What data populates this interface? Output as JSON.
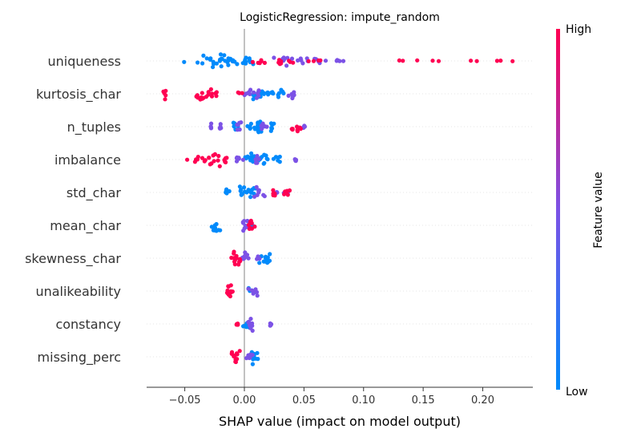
{
  "chart_data": {
    "type": "scatter",
    "title": "LogisticRegression: impute_random",
    "xlabel": "SHAP value (impact on model output)",
    "xlim": [
      -0.082,
      0.242
    ],
    "xticks": [
      -0.05,
      0.0,
      0.05,
      0.1,
      0.15,
      0.2
    ],
    "xtick_labels": [
      "−0.05",
      "0.00",
      "0.05",
      "0.10",
      "0.15",
      "0.20"
    ],
    "features": [
      "uniqueness",
      "kurtosis_char",
      "n_tuples",
      "imbalance",
      "std_char",
      "mean_char",
      "skewness_char",
      "unalikeability",
      "constancy",
      "missing_perc"
    ],
    "colorbar": {
      "label": "Feature value",
      "high_label": "High",
      "low_label": "Low",
      "low_color": "#008afb",
      "mid_color": "#7c52e6",
      "high_color": "#ff0052"
    },
    "points": {
      "uniqueness": {
        "low": [
          [
            -0.03,
            0.02,
            8
          ],
          [
            -0.02,
            0.015,
            10
          ],
          [
            -0.01,
            0.018,
            10
          ],
          [
            -0.005,
            0.015,
            8
          ],
          [
            0.005,
            0.006,
            5
          ]
        ],
        "mid": [
          [
            0.03,
            0.015,
            8
          ],
          [
            0.05,
            0.012,
            6
          ],
          [
            0.06,
            0.01,
            4
          ],
          [
            0.072,
            0.008,
            3
          ],
          [
            0.078,
            0.004,
            2
          ],
          [
            0.083,
            0.001,
            1
          ]
        ],
        "high": [
          [
            0.013,
            0.007,
            6
          ],
          [
            0.028,
            0.005,
            5
          ],
          [
            0.04,
            0.006,
            3
          ],
          [
            0.055,
            0.004,
            2
          ],
          [
            0.064,
            0.003,
            2
          ],
          [
            0.13,
            0.001,
            1
          ],
          [
            0.133,
            0.001,
            1
          ],
          [
            0.145,
            0.001,
            1
          ],
          [
            0.158,
            0.001,
            1
          ],
          [
            0.163,
            0.001,
            1
          ],
          [
            0.19,
            0.001,
            1
          ],
          [
            0.195,
            0.001,
            1
          ],
          [
            0.212,
            0.001,
            1
          ],
          [
            0.215,
            0.001,
            1
          ],
          [
            0.225,
            0.001,
            1
          ]
        ]
      },
      "kurtosis_char": {
        "high": [
          [
            -0.067,
            0.001,
            6
          ],
          [
            -0.035,
            0.006,
            12
          ],
          [
            -0.026,
            0.004,
            6
          ],
          [
            -0.005,
            0.003,
            3
          ]
        ],
        "mid": [
          [
            0.003,
            0.005,
            6
          ],
          [
            0.01,
            0.004,
            6
          ],
          [
            0.04,
            0.003,
            6
          ]
        ],
        "low": [
          [
            0.012,
            0.006,
            14
          ],
          [
            0.022,
            0.006,
            8
          ],
          [
            0.03,
            0.004,
            6
          ]
        ]
      },
      "n_tuples": {
        "mid": [
          [
            -0.028,
            0.001,
            5
          ],
          [
            -0.02,
            0.001,
            5
          ],
          [
            -0.005,
            0.002,
            6
          ],
          [
            0.015,
            0.004,
            8
          ],
          [
            0.05,
            0.002,
            4
          ]
        ],
        "low": [
          [
            -0.008,
            0.002,
            6
          ],
          [
            0.005,
            0.002,
            6
          ],
          [
            0.012,
            0.005,
            14
          ],
          [
            0.023,
            0.002,
            6
          ]
        ],
        "high": [
          [
            0.043,
            0.004,
            8
          ]
        ]
      },
      "imbalance": {
        "high": [
          [
            -0.048,
            0.001,
            1
          ],
          [
            -0.04,
            0.003,
            4
          ],
          [
            -0.032,
            0.004,
            5
          ],
          [
            -0.025,
            0.005,
            8
          ],
          [
            -0.015,
            0.004,
            5
          ]
        ],
        "mid": [
          [
            -0.005,
            0.004,
            6
          ],
          [
            0.01,
            0.003,
            6
          ],
          [
            0.043,
            0.001,
            4
          ]
        ],
        "low": [
          [
            0.005,
            0.005,
            12
          ],
          [
            0.015,
            0.006,
            12
          ],
          [
            0.028,
            0.004,
            6
          ]
        ]
      },
      "std_char": {
        "low": [
          [
            -0.015,
            0.004,
            6
          ],
          [
            -0.003,
            0.004,
            8
          ],
          [
            0.005,
            0.005,
            10
          ]
        ],
        "mid": [
          [
            0.012,
            0.006,
            8
          ],
          [
            0.027,
            0.002,
            3
          ],
          [
            0.036,
            0.002,
            3
          ]
        ],
        "high": [
          [
            0.025,
            0.002,
            5
          ],
          [
            0.035,
            0.003,
            6
          ]
        ]
      },
      "mean_char": {
        "low": [
          [
            -0.024,
            0.004,
            10
          ],
          [
            0.005,
            0.003,
            5
          ]
        ],
        "mid": [
          [
            0.002,
            0.004,
            10
          ]
        ],
        "high": [
          [
            0.005,
            0.003,
            8
          ]
        ]
      },
      "skewness_char": {
        "high": [
          [
            -0.007,
            0.004,
            14
          ]
        ],
        "mid": [
          [
            0.0,
            0.004,
            8
          ],
          [
            0.012,
            0.002,
            4
          ]
        ],
        "low": [
          [
            0.017,
            0.005,
            12
          ]
        ]
      },
      "unalikeability": {
        "high": [
          [
            -0.013,
            0.004,
            14
          ]
        ],
        "mid": [
          [
            0.008,
            0.004,
            8
          ]
        ],
        "low": [
          [
            0.005,
            0.004,
            6
          ]
        ]
      },
      "constancy": {
        "high": [
          [
            -0.007,
            0.002,
            4
          ]
        ],
        "low": [
          [
            0.003,
            0.004,
            12
          ]
        ],
        "mid": [
          [
            0.005,
            0.004,
            8
          ],
          [
            0.022,
            0.001,
            4
          ]
        ]
      },
      "missing_perc": {
        "high": [
          [
            -0.008,
            0.004,
            14
          ]
        ],
        "mid": [
          [
            0.004,
            0.003,
            8
          ]
        ],
        "low": [
          [
            0.01,
            0.004,
            10
          ]
        ]
      }
    }
  }
}
